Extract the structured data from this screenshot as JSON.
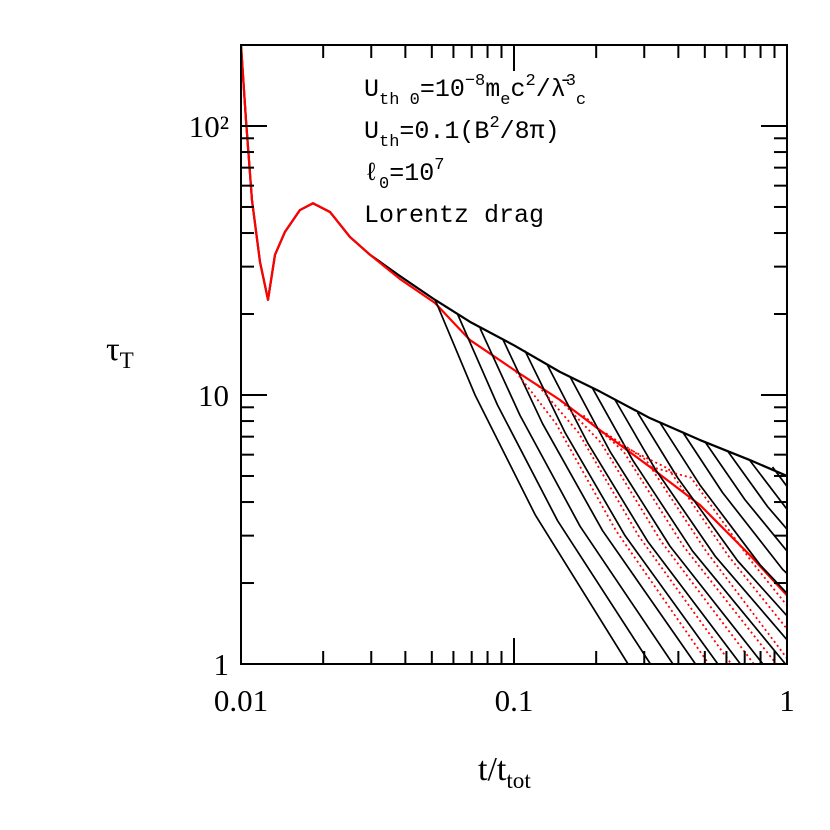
{
  "chart_data": {
    "type": "line",
    "log_x": true,
    "log_y": true,
    "xlim": [
      0.01,
      1
    ],
    "ylim": [
      1,
      200
    ],
    "xticks": [
      0.01,
      0.1,
      1
    ],
    "yticks": [
      1,
      10,
      {
        "value": 100,
        "label": "10²"
      }
    ],
    "xminor_ticks": [
      0.02,
      0.03,
      0.04,
      0.05,
      0.06,
      0.07,
      0.08,
      0.09,
      0.2,
      0.3,
      0.4,
      0.5,
      0.6,
      0.7,
      0.8,
      0.9
    ],
    "yminor_ticks": [
      2,
      3,
      4,
      5,
      6,
      7,
      8,
      9,
      20,
      30,
      40,
      50,
      60,
      70,
      80,
      90,
      200
    ],
    "xlabel": [
      "t/t",
      {
        "text": "tot",
        "pos": "sub"
      }
    ],
    "ylabel": [
      "τ",
      {
        "text": "T",
        "pos": "sub"
      }
    ],
    "annotations": [
      [
        "U",
        {
          "text": "th 0",
          "pos": "sub"
        },
        "=10",
        {
          "text": "−8",
          "pos": "sup"
        },
        "m",
        {
          "text": "e",
          "pos": "sub"
        },
        "c",
        {
          "text": "2",
          "pos": "sup"
        },
        "/λ̄",
        {
          "text": "3",
          "pos": "sup"
        },
        {
          "text": "c",
          "pos": "sub"
        }
      ],
      [
        "U",
        {
          "text": "th",
          "pos": "sub"
        },
        "=0.1(B",
        {
          "text": "2",
          "pos": "sup"
        },
        "/8π)"
      ],
      [
        "ℓ",
        {
          "text": "0",
          "pos": "sub"
        },
        "=10",
        {
          "text": "7",
          "pos": "sup"
        }
      ]
    ],
    "series": [
      {
        "color": "#000000",
        "x": [
          0.01,
          0.01043,
          0.01097,
          0.01174,
          0.01256,
          0.01332,
          0.01449,
          0.01644,
          0.01835,
          0.02118,
          0.02506,
          0.0297,
          0.0382,
          0.0513,
          0.069,
          0.1,
          0.147,
          0.2065,
          0.315,
          0.48,
          0.731,
          1
        ],
        "values": [
          200,
          105,
          53,
          31.2,
          22.6,
          33.2,
          40.4,
          48.7,
          51.6,
          47.9,
          38.7,
          33.2,
          27.7,
          22.6,
          18.7,
          15.3,
          12.2,
          10.3,
          8.2,
          6.8,
          5.73,
          5.0
        ]
      },
      {
        "name": "Lorentz drag",
        "color": "#ff0000",
        "x": [
          0.01,
          0.01043,
          0.01097,
          0.01174,
          0.01256,
          0.01332,
          0.01449,
          0.01644,
          0.01835,
          0.02118,
          0.02506,
          0.0297,
          0.0382,
          0.0513,
          0.069,
          0.1,
          0.147,
          0.2065,
          0.315,
          0.48,
          0.731,
          1
        ],
        "values": [
          200,
          105,
          53,
          31.2,
          22.6,
          33.2,
          40.4,
          48.7,
          51.6,
          47.9,
          38.7,
          33.2,
          27.0,
          22.0,
          16.0,
          12.4,
          9.6,
          7.4,
          5.4,
          3.9,
          2.54,
          1.8
        ]
      },
      {
        "color": "#000000",
        "x": [
          0.0514,
          0.072,
          0.1195,
          0.2616
        ],
        "values": [
          22.6,
          10.0,
          3.59,
          1
        ]
      },
      {
        "color": "#000000",
        "x": [
          0.0621,
          0.087,
          0.1444,
          0.316
        ],
        "values": [
          20.0,
          9.18,
          3.41,
          1
        ]
      },
      {
        "color": "#000000",
        "x": [
          0.0751,
          0.1052,
          0.1746,
          0.382
        ],
        "values": [
          17.7,
          8.4,
          3.25,
          1
        ]
      },
      {
        "color": "#000000",
        "x": [
          0.0908,
          0.1272,
          0.2111,
          0.462
        ],
        "values": [
          16.2,
          7.83,
          3.13,
          1
        ]
      },
      {
        "color": "#000000",
        "x": [
          0.1097,
          0.1537,
          0.2551,
          0.558
        ],
        "values": [
          14.6,
          7.26,
          3.0,
          1
        ]
      },
      {
        "color": "#000000",
        "x": [
          0.1327,
          0.1859,
          0.3085,
          0.675
        ],
        "values": [
          12.9,
          6.65,
          2.86,
          1
        ]
      },
      {
        "color": "#000000",
        "x": [
          0.1604,
          0.2247,
          0.3729,
          0.816
        ],
        "values": [
          11.7,
          6.17,
          2.74,
          1
        ]
      },
      {
        "color": "#000000",
        "x": [
          0.1939,
          0.2717,
          0.4508,
          0.987
        ],
        "values": [
          10.6,
          5.74,
          2.63,
          1
        ]
      },
      {
        "color": "#000000",
        "x": [
          0.2344,
          0.3284,
          0.545,
          1
        ],
        "values": [
          9.6,
          5.32,
          2.52,
          1.23
        ]
      },
      {
        "color": "#000000",
        "x": [
          0.2835,
          0.3972,
          0.659,
          1
        ],
        "values": [
          8.6,
          4.93,
          2.42,
          1.51
        ]
      },
      {
        "color": "#000000",
        "x": [
          0.3425,
          0.4798,
          0.796,
          1
        ],
        "values": [
          7.9,
          4.63,
          2.34,
          1.83
        ]
      },
      {
        "color": "#000000",
        "x": [
          0.4142,
          0.5803,
          0.963,
          1
        ],
        "values": [
          7.3,
          4.34,
          2.25,
          2.17
        ]
      },
      {
        "color": "#000000",
        "x": [
          0.5007,
          0.7015,
          1
        ],
        "values": [
          6.7,
          4.08,
          2.63
        ]
      },
      {
        "color": "#000000",
        "x": [
          0.6055,
          0.8483,
          1
        ],
        "values": [
          6.2,
          3.85,
          3.17
        ]
      },
      {
        "color": "#000000",
        "x": [
          0.7318,
          1
        ],
        "values": [
          5.7,
          3.76
        ]
      },
      {
        "color": "#000000",
        "x": [
          0.885,
          1
        ],
        "values": [
          5.4,
          4.57
        ]
      },
      {
        "color": "#ff0000",
        "dash": "dotted",
        "x": [
          0.1017,
          0.1425,
          0.2364,
          0.517
        ],
        "values": [
          12.2,
          7.83,
          3.13,
          1
        ]
      },
      {
        "color": "#ff0000",
        "dash": "dotted",
        "x": [
          0.1229,
          0.1721,
          0.2857,
          0.625
        ],
        "values": [
          10.8,
          7.26,
          3.0,
          1
        ]
      },
      {
        "color": "#ff0000",
        "dash": "dotted",
        "x": [
          0.1486,
          0.2082,
          0.3455,
          0.756
        ],
        "values": [
          9.5,
          6.65,
          2.86,
          1
        ]
      },
      {
        "color": "#ff0000",
        "dash": "dotted",
        "x": [
          0.1796,
          0.2517,
          0.4176,
          0.914
        ],
        "values": [
          8.4,
          6.17,
          2.74,
          1
        ]
      },
      {
        "color": "#ff0000",
        "dash": "dotted",
        "x": [
          0.2172,
          0.3043,
          0.5049,
          1
        ],
        "values": [
          7.2,
          5.74,
          2.63,
          1.05
        ]
      },
      {
        "color": "#ff0000",
        "dash": "dotted",
        "x": [
          0.2625,
          0.3678,
          0.6104,
          1
        ],
        "values": [
          6.3,
          5.32,
          2.52,
          1.35
        ]
      },
      {
        "color": "#ff0000",
        "dash": "dotted",
        "x": [
          0.3175,
          0.4449,
          0.738,
          1
        ],
        "values": [
          5.4,
          4.93,
          2.42,
          1.65
        ]
      }
    ]
  }
}
